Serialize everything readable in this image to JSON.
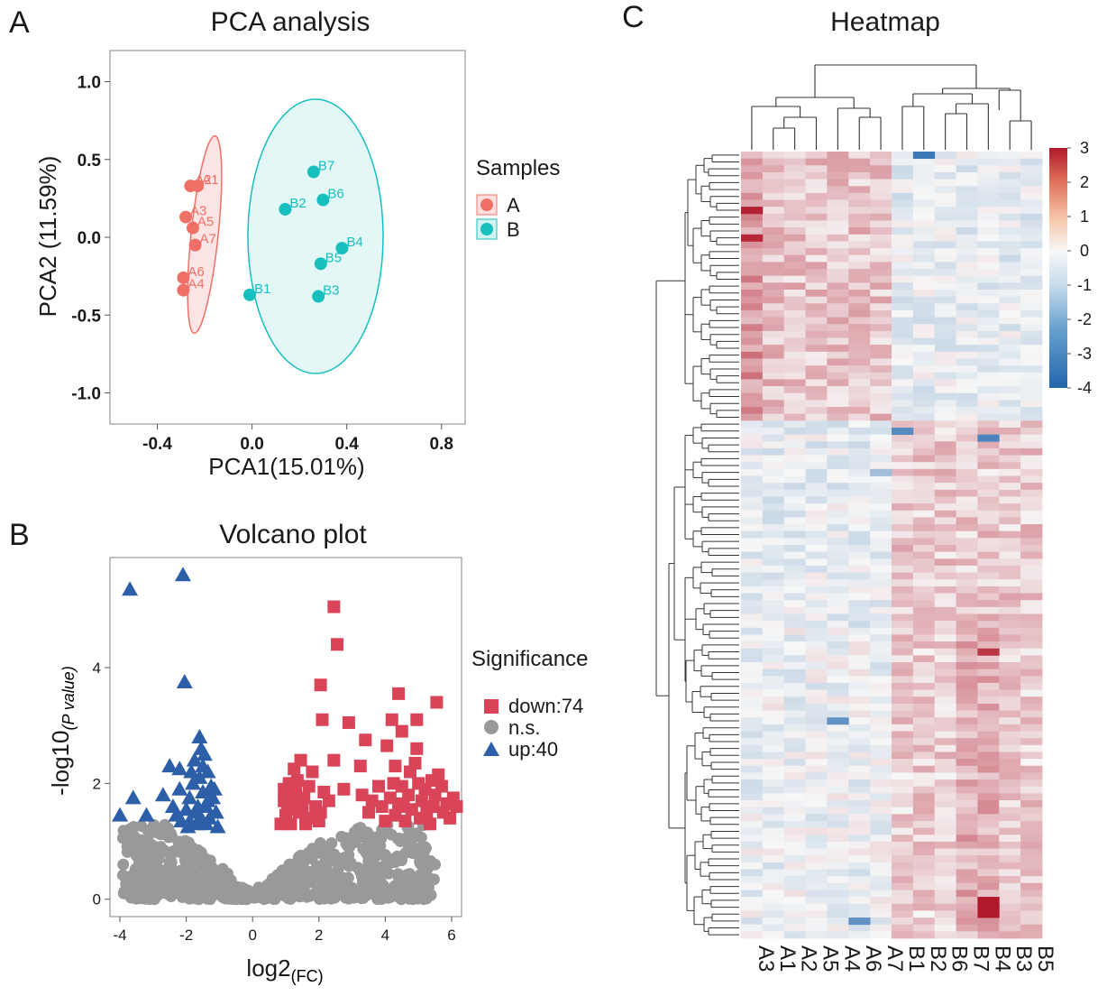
{
  "panels": {
    "a": {
      "letter": "A",
      "title": "PCA analysis"
    },
    "b": {
      "letter": "B",
      "title": "Volcano plot"
    },
    "c": {
      "letter": "C",
      "title": "Heatmap"
    }
  },
  "colors": {
    "groupA": "#f07068",
    "groupB": "#17bfbf",
    "down": "#d94459",
    "ns": "#999999",
    "up": "#2c5fa8",
    "heatHigh": "#b2182b",
    "heatMid": "#f7f7f7",
    "heatLow": "#2166ac"
  },
  "chart_data": [
    {
      "type": "scatter",
      "id": "pca",
      "title": "PCA analysis",
      "xlabel": "PCA1(15.01%)",
      "ylabel": "PCA2 (11.59%)",
      "xlim": [
        -0.6,
        0.9
      ],
      "ylim": [
        -1.2,
        1.2
      ],
      "xticks": [
        -0.4,
        0.0,
        0.4,
        0.8
      ],
      "xtick_labels": [
        "-0.4",
        "0.0",
        "0.4",
        "0.8"
      ],
      "yticks": [
        1.0,
        0.5,
        0.0,
        -0.5,
        -1.0
      ],
      "ytick_labels": [
        "1.0",
        "0.5",
        "0.0",
        "-0.5",
        "-1.0"
      ],
      "legend_title": "Samples",
      "legend": [
        "A",
        "B"
      ],
      "series": [
        {
          "name": "A",
          "points": [
            {
              "label": "A1",
              "x": -0.23,
              "y": 0.33
            },
            {
              "label": "A2",
              "x": -0.26,
              "y": 0.33
            },
            {
              "label": "A3",
              "x": -0.28,
              "y": 0.13
            },
            {
              "label": "A5",
              "x": -0.25,
              "y": 0.06
            },
            {
              "label": "A7",
              "x": -0.24,
              "y": -0.05
            },
            {
              "label": "A6",
              "x": -0.29,
              "y": -0.26
            },
            {
              "label": "A4",
              "x": -0.29,
              "y": -0.34
            }
          ]
        },
        {
          "name": "B",
          "points": [
            {
              "label": "B7",
              "x": 0.26,
              "y": 0.42
            },
            {
              "label": "B2",
              "x": 0.14,
              "y": 0.18
            },
            {
              "label": "B6",
              "x": 0.3,
              "y": 0.24
            },
            {
              "label": "B4",
              "x": 0.38,
              "y": -0.07
            },
            {
              "label": "B5",
              "x": 0.29,
              "y": -0.17
            },
            {
              "label": "B1",
              "x": -0.01,
              "y": -0.37
            },
            {
              "label": "B3",
              "x": 0.28,
              "y": -0.38
            }
          ]
        }
      ]
    },
    {
      "type": "scatter",
      "id": "volcano",
      "title": "Volcano plot",
      "xlabel": "log2",
      "xlabel_sub": "(FC)",
      "ylabel": "-log10",
      "ylabel_sub": "(P value)",
      "xlim": [
        -4.3,
        6.3
      ],
      "ylim": [
        -0.3,
        5.9
      ],
      "xticks": [
        -4,
        -2,
        0,
        2,
        4,
        6
      ],
      "xtick_labels": [
        "-4",
        "-2",
        "0",
        "2",
        "4",
        "6"
      ],
      "yticks": [
        0,
        2,
        4
      ],
      "ytick_labels": [
        "0",
        "2",
        "4"
      ],
      "legend_title": "Significance",
      "legend": [
        "down:74",
        "n.s.",
        "up:40"
      ],
      "up_points": [
        [
          -3.7,
          5.35
        ],
        [
          -2.1,
          5.6
        ],
        [
          -2.05,
          3.75
        ],
        [
          -3.6,
          1.75
        ],
        [
          -4.0,
          1.45
        ],
        [
          -3.2,
          1.45
        ],
        [
          -2.7,
          1.8
        ],
        [
          -2.4,
          1.6
        ],
        [
          -2.2,
          1.9
        ],
        [
          -1.9,
          1.75
        ],
        [
          -1.7,
          1.5
        ],
        [
          -1.6,
          2.1
        ],
        [
          -1.5,
          2.3
        ],
        [
          -1.55,
          2.6
        ],
        [
          -1.6,
          2.8
        ],
        [
          -1.45,
          2.5
        ],
        [
          -1.35,
          2.2
        ],
        [
          -1.25,
          1.95
        ],
        [
          -1.8,
          2.0
        ],
        [
          -2.0,
          1.55
        ],
        [
          -2.15,
          1.35
        ],
        [
          -1.95,
          1.25
        ],
        [
          -1.7,
          1.3
        ],
        [
          -1.4,
          1.6
        ],
        [
          -1.3,
          1.4
        ],
        [
          -1.2,
          1.75
        ],
        [
          -1.1,
          1.5
        ],
        [
          -1.05,
          1.25
        ],
        [
          -2.5,
          2.3
        ],
        [
          -2.2,
          2.25
        ],
        [
          -1.75,
          2.4
        ],
        [
          -1.5,
          1.85
        ],
        [
          -1.35,
          1.7
        ],
        [
          -1.15,
          1.9
        ],
        [
          -1.9,
          1.35
        ],
        [
          -1.65,
          1.6
        ],
        [
          -2.3,
          1.45
        ],
        [
          -1.85,
          2.2
        ],
        [
          -1.4,
          1.3
        ],
        [
          -1.55,
          1.4
        ]
      ],
      "down_points": [
        [
          2.45,
          5.05
        ],
        [
          2.55,
          4.4
        ],
        [
          2.05,
          3.7
        ],
        [
          2.1,
          3.1
        ],
        [
          2.9,
          3.05
        ],
        [
          4.4,
          3.55
        ],
        [
          5.55,
          3.4
        ],
        [
          4.2,
          3.1
        ],
        [
          4.95,
          3.1
        ],
        [
          4.5,
          2.9
        ],
        [
          3.4,
          2.75
        ],
        [
          4.05,
          2.65
        ],
        [
          4.95,
          2.6
        ],
        [
          1.45,
          2.4
        ],
        [
          2.45,
          2.4
        ],
        [
          3.25,
          2.3
        ],
        [
          4.3,
          2.3
        ],
        [
          4.75,
          2.2
        ],
        [
          1.1,
          2.0
        ],
        [
          1.35,
          2.05
        ],
        [
          1.7,
          1.95
        ],
        [
          2.15,
          1.85
        ],
        [
          2.75,
          1.9
        ],
        [
          4.5,
          1.95
        ],
        [
          5.0,
          2.0
        ],
        [
          5.4,
          2.05
        ],
        [
          5.7,
          1.95
        ],
        [
          0.95,
          1.7
        ],
        [
          1.2,
          1.65
        ],
        [
          1.55,
          1.75
        ],
        [
          1.9,
          1.6
        ],
        [
          3.6,
          1.7
        ],
        [
          3.9,
          1.6
        ],
        [
          4.15,
          1.75
        ],
        [
          4.7,
          1.8
        ],
        [
          5.1,
          1.7
        ],
        [
          5.5,
          1.8
        ],
        [
          5.85,
          1.65
        ],
        [
          6.15,
          1.6
        ],
        [
          1.0,
          1.45
        ],
        [
          1.4,
          1.5
        ],
        [
          1.75,
          1.4
        ],
        [
          2.05,
          1.5
        ],
        [
          4.3,
          1.45
        ],
        [
          4.8,
          1.55
        ],
        [
          5.25,
          1.5
        ],
        [
          5.95,
          1.4
        ],
        [
          0.85,
          1.3
        ],
        [
          1.15,
          1.3
        ],
        [
          1.6,
          1.3
        ],
        [
          4.6,
          1.35
        ],
        [
          5.35,
          1.3
        ],
        [
          1.3,
          1.85
        ],
        [
          1.8,
          2.2
        ],
        [
          4.9,
          2.35
        ],
        [
          5.6,
          2.15
        ],
        [
          3.8,
          1.95
        ],
        [
          4.4,
          1.65
        ],
        [
          5.2,
          1.9
        ],
        [
          0.95,
          1.9
        ],
        [
          1.25,
          2.25
        ],
        [
          2.3,
          1.7
        ],
        [
          3.5,
          1.5
        ],
        [
          4.0,
          1.35
        ],
        [
          4.55,
          1.6
        ],
        [
          5.75,
          1.5
        ],
        [
          6.05,
          1.75
        ],
        [
          1.5,
          1.55
        ],
        [
          2.0,
          1.35
        ],
        [
          4.25,
          2.0
        ],
        [
          5.05,
          1.4
        ],
        [
          5.45,
          1.6
        ],
        [
          1.05,
          1.55
        ],
        [
          3.3,
          1.8
        ]
      ],
      "ns_points_note": "dense cloud of non-significant genes near 0"
    },
    {
      "type": "heatmap",
      "id": "heatmap",
      "title": "Heatmap",
      "columns": [
        "A3",
        "A1",
        "A2",
        "A5",
        "A4",
        "A6",
        "A7",
        "B1",
        "B2",
        "B6",
        "B7",
        "B4",
        "B3",
        "B5"
      ],
      "rows": 114,
      "colorbar_ticks": [
        3,
        2,
        1,
        0,
        -1,
        -2,
        -3,
        -4
      ],
      "colorbar_labels": [
        "3",
        "2",
        "1",
        "0",
        "-1",
        "-2",
        "-3",
        "-4"
      ],
      "value_range": [
        -4,
        3
      ]
    }
  ]
}
